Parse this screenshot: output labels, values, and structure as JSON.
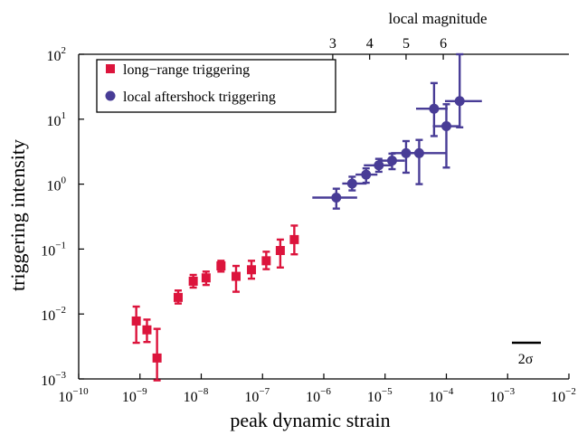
{
  "chart_data": {
    "type": "scatter",
    "xlabel": "peak dynamic strain",
    "ylabel": "triggering intensity",
    "top_axis": {
      "label": "local magnitude",
      "ticks": [
        {
          "label": "3",
          "strain": 1.4e-06
        },
        {
          "label": "4",
          "strain": 5.6e-06
        },
        {
          "label": "5",
          "strain": 2.2e-05
        },
        {
          "label": "6",
          "strain": 8.9e-05
        }
      ]
    },
    "x_scale": "log",
    "y_scale": "log",
    "xlim": [
      1e-10,
      0.01
    ],
    "ylim": [
      0.001,
      100.0
    ],
    "x_ticks": [
      {
        "base": "10",
        "exp": "−10",
        "value": 1e-10
      },
      {
        "base": "10",
        "exp": "−9",
        "value": 1e-09
      },
      {
        "base": "10",
        "exp": "−8",
        "value": 1e-08
      },
      {
        "base": "10",
        "exp": "−7",
        "value": 1e-07
      },
      {
        "base": "10",
        "exp": "−6",
        "value": 1e-06
      },
      {
        "base": "10",
        "exp": "−5",
        "value": 1e-05
      },
      {
        "base": "10",
        "exp": "−4",
        "value": 0.0001
      },
      {
        "base": "10",
        "exp": "−3",
        "value": 0.001
      },
      {
        "base": "10",
        "exp": "−2",
        "value": 0.01
      }
    ],
    "y_ticks": [
      {
        "base": "10",
        "exp": "−3",
        "value": 0.001
      },
      {
        "base": "10",
        "exp": "−2",
        "value": 0.01
      },
      {
        "base": "10",
        "exp": "−1",
        "value": 0.1
      },
      {
        "base": "10",
        "exp": "0",
        "value": 1
      },
      {
        "base": "10",
        "exp": "1",
        "value": 10
      },
      {
        "base": "10",
        "exp": "2",
        "value": 100
      }
    ],
    "legend_position": "top-left",
    "scale_bar_label": "2σ",
    "grid": false,
    "series": [
      {
        "name": "long−range triggering",
        "marker": "square",
        "color": "#dc143c",
        "points": [
          {
            "x": 8.7e-10,
            "y": 0.0078,
            "ylo": 0.0036,
            "yhi": 0.013
          },
          {
            "x": 1.3e-09,
            "y": 0.0057,
            "ylo": 0.0037,
            "yhi": 0.0082
          },
          {
            "x": 1.9e-09,
            "y": 0.0021,
            "ylo": 0.00095,
            "yhi": 0.0059
          },
          {
            "x": 4.2e-09,
            "y": 0.018,
            "ylo": 0.0145,
            "yhi": 0.023
          },
          {
            "x": 7.4e-09,
            "y": 0.032,
            "ylo": 0.0255,
            "yhi": 0.04
          },
          {
            "x": 1.2e-08,
            "y": 0.036,
            "ylo": 0.028,
            "yhi": 0.045
          },
          {
            "x": 2.1e-08,
            "y": 0.055,
            "ylo": 0.045,
            "yhi": 0.066
          },
          {
            "x": 3.7e-08,
            "y": 0.038,
            "ylo": 0.022,
            "yhi": 0.055
          },
          {
            "x": 6.6e-08,
            "y": 0.048,
            "ylo": 0.035,
            "yhi": 0.066
          },
          {
            "x": 1.15e-07,
            "y": 0.066,
            "ylo": 0.049,
            "yhi": 0.091
          },
          {
            "x": 1.95e-07,
            "y": 0.095,
            "ylo": 0.052,
            "yhi": 0.14
          },
          {
            "x": 3.3e-07,
            "y": 0.14,
            "ylo": 0.083,
            "yhi": 0.23
          }
        ]
      },
      {
        "name": "local aftershock triggering",
        "marker": "circle",
        "color": "#483c96",
        "points": [
          {
            "x": 1.6e-06,
            "y": 0.62,
            "ylo": 0.42,
            "yhi": 0.85,
            "xlo": 6.5e-07,
            "xhi": 3.5e-06
          },
          {
            "x": 2.9e-06,
            "y": 1.02,
            "ylo": 0.8,
            "yhi": 1.3,
            "xlo": 2e-06,
            "xhi": 5e-06
          },
          {
            "x": 4.9e-06,
            "y": 1.4,
            "ylo": 1.05,
            "yhi": 1.75,
            "xlo": 3.3e-06,
            "xhi": 7.5e-06
          },
          {
            "x": 7.9e-06,
            "y": 1.95,
            "ylo": 1.55,
            "yhi": 2.45,
            "xlo": 4.5e-06,
            "xhi": 1.3e-05
          },
          {
            "x": 1.3e-05,
            "y": 2.3,
            "ylo": 1.7,
            "yhi": 2.95,
            "xlo": 8e-06,
            "xhi": 2.1e-05
          },
          {
            "x": 2.2e-05,
            "y": 3.0,
            "ylo": 1.5,
            "yhi": 4.6,
            "xlo": 1.25e-05,
            "xhi": 3.8e-05
          },
          {
            "x": 3.6e-05,
            "y": 3.0,
            "ylo": 1.0,
            "yhi": 4.8,
            "xlo": 2.1e-05,
            "xhi": 0.0001
          },
          {
            "x": 6.3e-05,
            "y": 14.5,
            "ylo": 5.5,
            "yhi": 36.0,
            "xlo": 3.2e-05,
            "xhi": 0.000105
          },
          {
            "x": 0.0001,
            "y": 7.8,
            "ylo": 1.8,
            "yhi": 17.0,
            "xlo": 6e-05,
            "xhi": 0.00016
          },
          {
            "x": 0.000165,
            "y": 19.0,
            "ylo": 7.5,
            "yhi": 100.0,
            "xlo": 9.5e-05,
            "xhi": 0.00038
          }
        ]
      }
    ]
  }
}
